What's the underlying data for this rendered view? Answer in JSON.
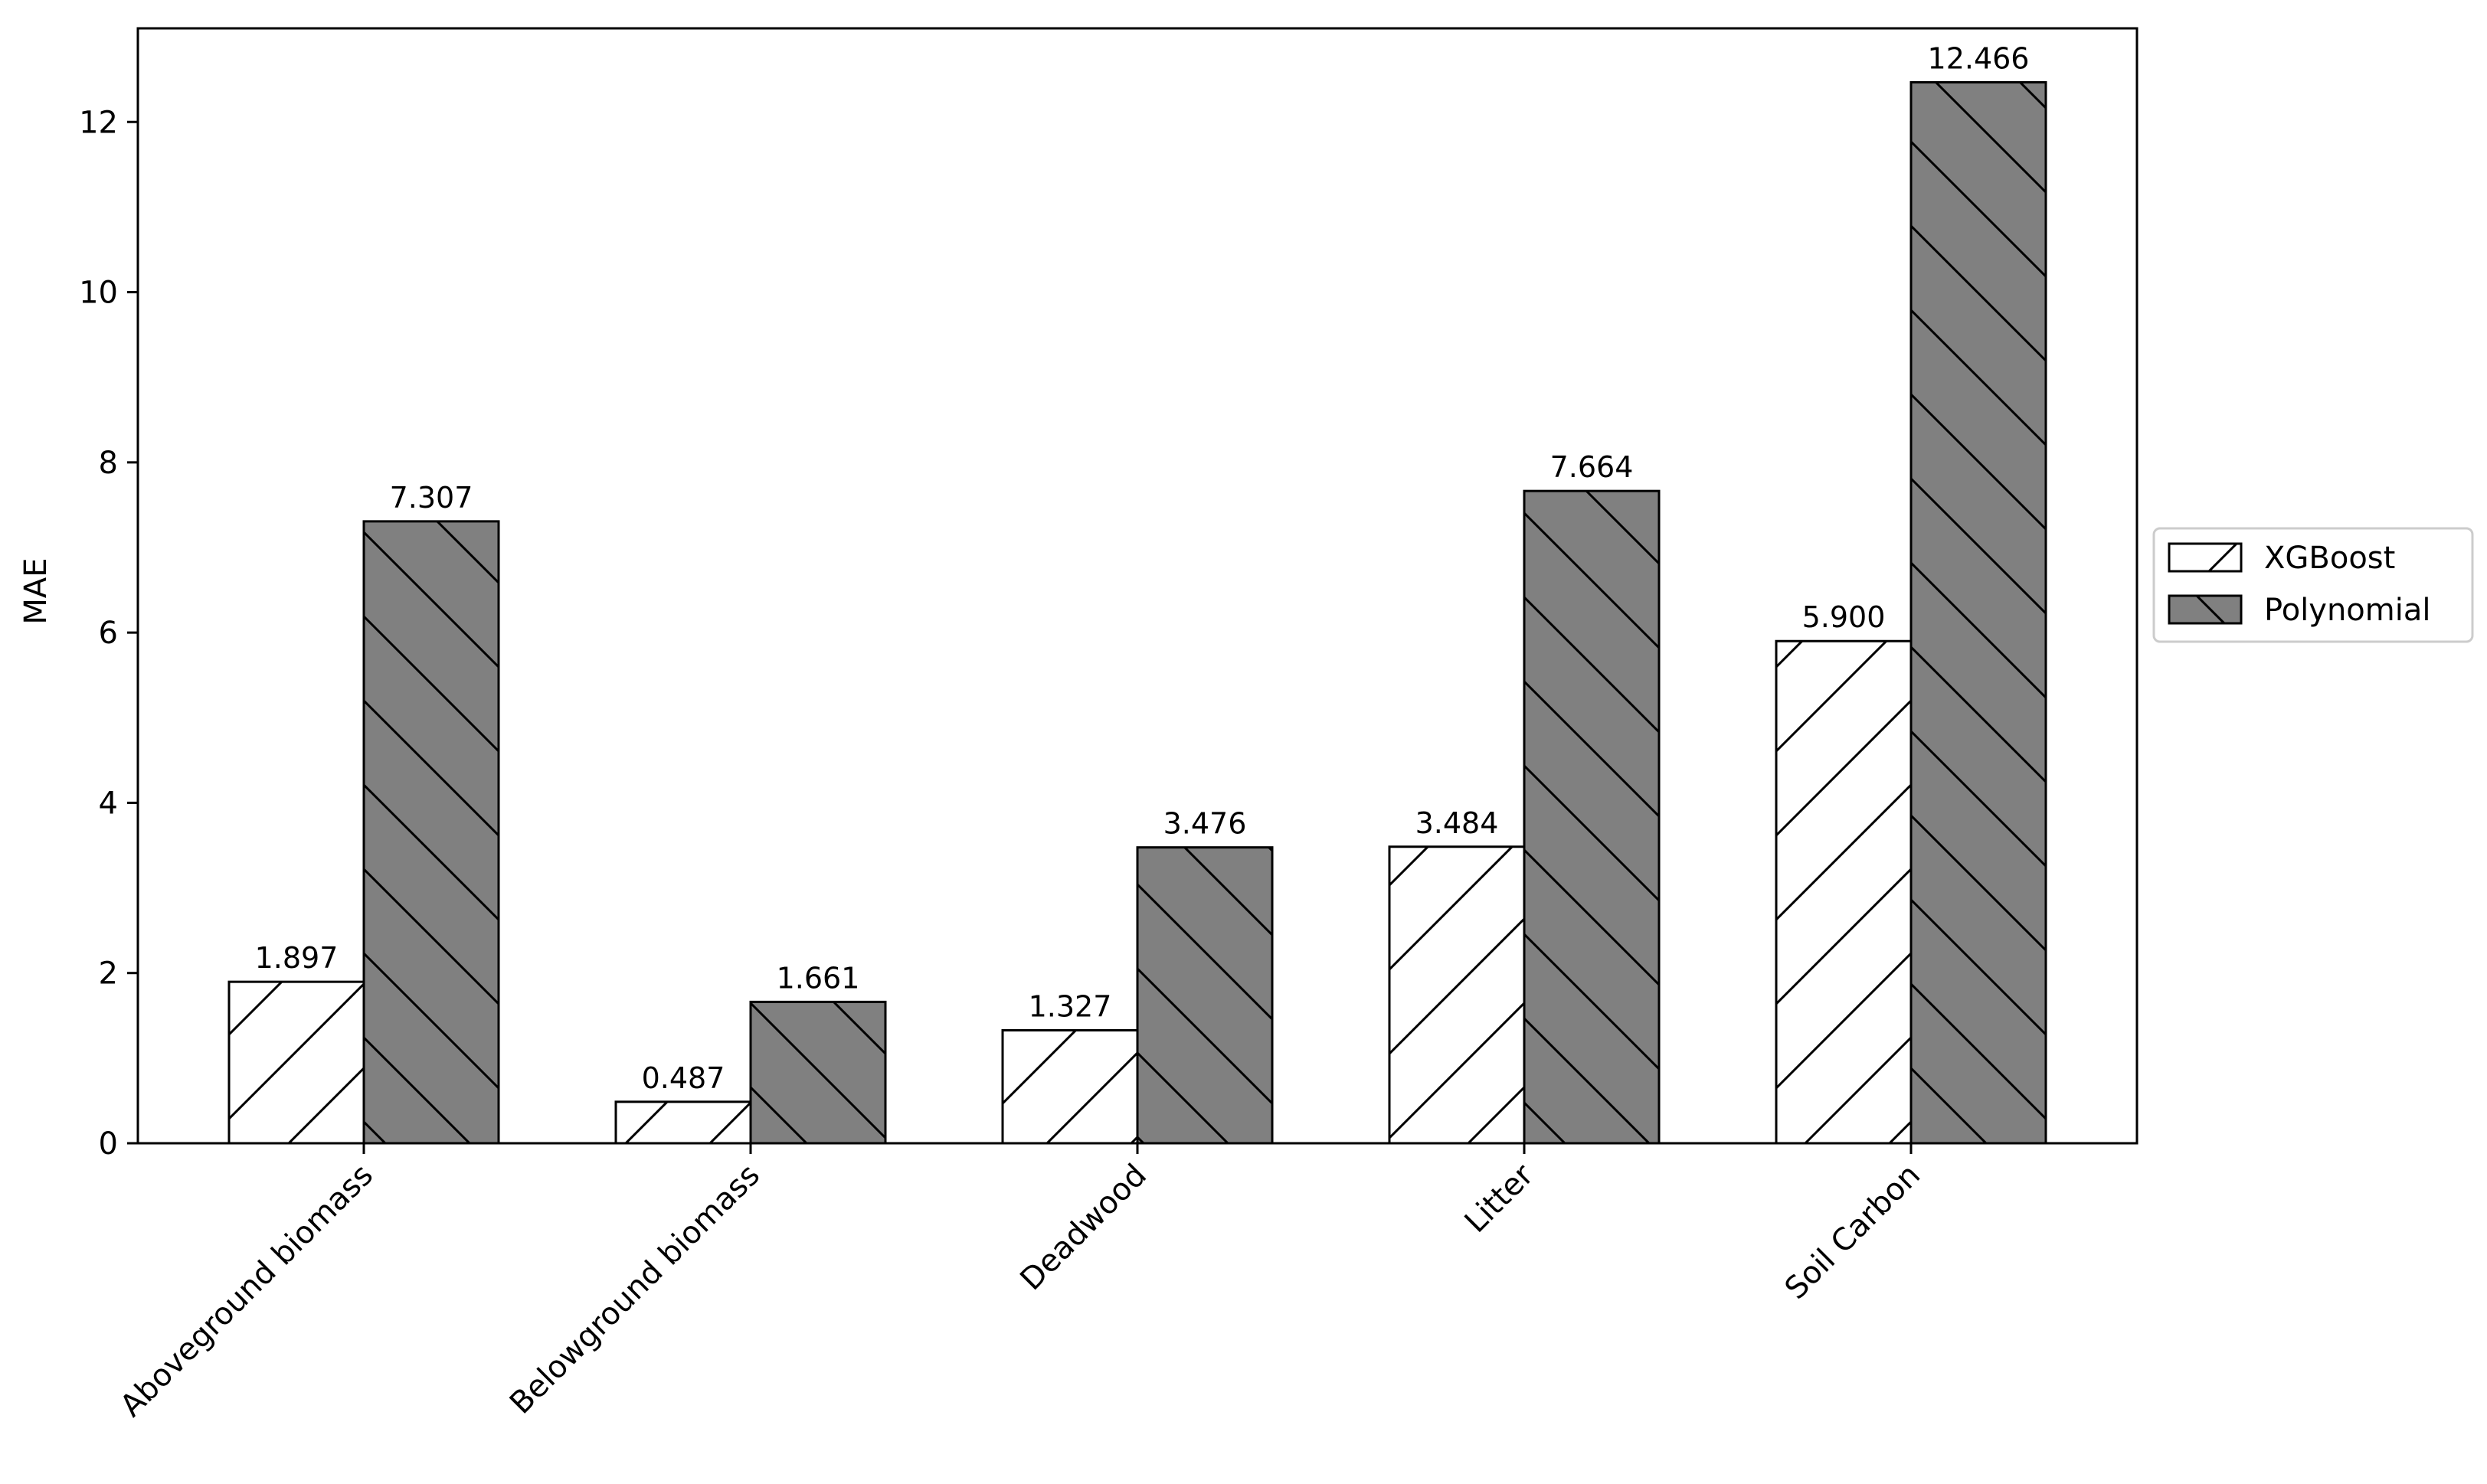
{
  "chart_data": {
    "type": "bar",
    "title": "",
    "xlabel": "",
    "ylabel": "MAE",
    "ylim": [
      0,
      13.1
    ],
    "yticks": [
      0,
      2,
      4,
      6,
      8,
      10,
      12
    ],
    "grid": false,
    "legend_position": "outside-right",
    "categories": [
      "Aboveground biomass",
      "Belowground biomass",
      "Deadwood",
      "Litter",
      "Soil Carbon"
    ],
    "series": [
      {
        "name": "XGBoost",
        "values": [
          1.897,
          0.487,
          1.327,
          3.484,
          5.9
        ],
        "labels": [
          "1.897",
          "0.487",
          "1.327",
          "3.484",
          "5.900"
        ],
        "fill_color": "#ffffff",
        "hatch": "forward-diagonal"
      },
      {
        "name": "Polynomial",
        "values": [
          7.307,
          1.661,
          3.476,
          7.664,
          12.466
        ],
        "labels": [
          "7.307",
          "1.661",
          "3.476",
          "7.664",
          "12.466"
        ],
        "fill_color": "#808080",
        "hatch": "back-diagonal"
      }
    ]
  }
}
